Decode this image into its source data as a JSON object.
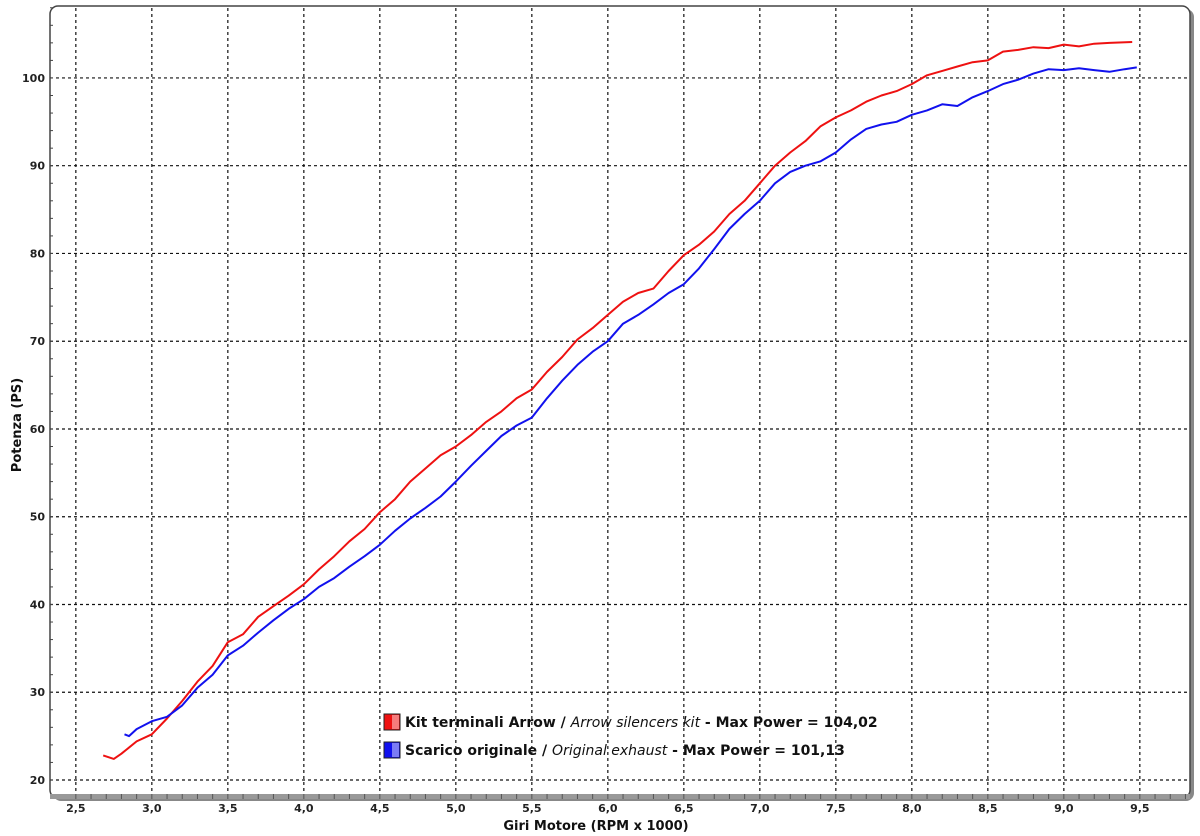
{
  "chart_data": {
    "type": "line",
    "title": "",
    "xlabel": "Giri Motore (RPM x 1000)",
    "ylabel": "Potenza (PS)",
    "xlim": [
      2.33,
      9.83
    ],
    "ylim": [
      18.06,
      108.2
    ],
    "xticks": [
      2.5,
      3.0,
      3.5,
      4.0,
      4.5,
      5.0,
      5.5,
      6.0,
      6.5,
      7.0,
      7.5,
      8.0,
      8.5,
      9.0,
      9.5
    ],
    "xtick_labels": [
      "2,5",
      "3,0",
      "3,5",
      "4,0",
      "4,5",
      "5,0",
      "5,5",
      "6,0",
      "6,5",
      "7,0",
      "7,5",
      "8,0",
      "8,5",
      "9,0",
      "9,5"
    ],
    "yticks": [
      20,
      30,
      40,
      50,
      60,
      70,
      80,
      90,
      100
    ],
    "ytick_labels": [
      "20",
      "30",
      "40",
      "50",
      "60",
      "70",
      "80",
      "90",
      "100"
    ],
    "grid": true,
    "legend_placement": "bottom-center",
    "series": [
      {
        "name_plain": "Kit terminali Arrow / ",
        "name_italic": "Arrow silencers kit",
        "name_suffix": " - Max Power = 104,02",
        "color": "#ee1111",
        "x": [
          2.68,
          2.75,
          2.8,
          2.9,
          3.0,
          3.1,
          3.2,
          3.3,
          3.4,
          3.5,
          3.6,
          3.7,
          3.8,
          3.9,
          4.0,
          4.1,
          4.2,
          4.3,
          4.4,
          4.5,
          4.6,
          4.7,
          4.8,
          4.9,
          5.0,
          5.1,
          5.2,
          5.3,
          5.4,
          5.5,
          5.6,
          5.7,
          5.8,
          5.9,
          6.0,
          6.1,
          6.2,
          6.3,
          6.4,
          6.5,
          6.6,
          6.7,
          6.8,
          6.9,
          7.0,
          7.1,
          7.2,
          7.3,
          7.4,
          7.5,
          7.6,
          7.7,
          7.8,
          7.9,
          8.0,
          8.1,
          8.2,
          8.3,
          8.4,
          8.5,
          8.6,
          8.7,
          8.8,
          8.9,
          9.0,
          9.1,
          9.2,
          9.3,
          9.45
        ],
        "y": [
          22.8,
          22.4,
          23,
          24.4,
          25.2,
          27,
          29,
          31.2,
          33,
          35.7,
          36.6,
          38.6,
          39.8,
          41,
          42.3,
          44,
          45.5,
          47.2,
          48.6,
          50.5,
          52,
          54,
          55.5,
          57,
          58,
          59.3,
          60.8,
          62,
          63.5,
          64.5,
          66.5,
          68.2,
          70.2,
          71.5,
          73,
          74.5,
          75.5,
          76,
          78,
          79.8,
          81,
          82.5,
          84.5,
          86,
          88,
          90,
          91.5,
          92.8,
          94.5,
          95.5,
          96.3,
          97.3,
          98,
          98.5,
          99.3,
          100.3,
          100.8,
          101.3,
          101.8,
          102,
          103,
          103.2,
          103.5,
          103.4,
          103.8,
          103.6,
          103.9,
          104,
          104.1
        ]
      },
      {
        "name_plain": "Scarico originale / ",
        "name_italic": "Original exhaust",
        "name_suffix": " - Max Power = 101,13",
        "color": "#1111ee",
        "x": [
          2.82,
          2.85,
          2.9,
          3.0,
          3.1,
          3.2,
          3.3,
          3.4,
          3.5,
          3.6,
          3.7,
          3.8,
          3.9,
          4.0,
          4.1,
          4.2,
          4.3,
          4.4,
          4.5,
          4.6,
          4.7,
          4.8,
          4.9,
          5.0,
          5.1,
          5.2,
          5.3,
          5.4,
          5.5,
          5.6,
          5.7,
          5.8,
          5.9,
          6.0,
          6.1,
          6.2,
          6.3,
          6.4,
          6.5,
          6.6,
          6.7,
          6.8,
          6.9,
          7.0,
          7.1,
          7.2,
          7.3,
          7.4,
          7.5,
          7.6,
          7.7,
          7.8,
          7.9,
          8.0,
          8.1,
          8.2,
          8.3,
          8.4,
          8.5,
          8.6,
          8.7,
          8.8,
          8.9,
          9.0,
          9.1,
          9.2,
          9.3,
          9.4,
          9.48
        ],
        "y": [
          25.2,
          25,
          25.8,
          26.7,
          27.2,
          28.5,
          30.5,
          32,
          34.2,
          35.3,
          36.8,
          38.2,
          39.5,
          40.6,
          42,
          43,
          44.3,
          45.5,
          46.8,
          48.4,
          49.8,
          51,
          52.3,
          54,
          55.8,
          57.5,
          59.2,
          60.4,
          61.3,
          63.5,
          65.5,
          67.3,
          68.8,
          70,
          72,
          73,
          74.2,
          75.5,
          76.5,
          78.3,
          80.5,
          82.8,
          84.5,
          86,
          88,
          89.3,
          90,
          90.5,
          91.5,
          93,
          94.2,
          94.7,
          95,
          95.8,
          96.3,
          97,
          96.8,
          97.8,
          98.5,
          99.3,
          99.8,
          100.5,
          101,
          100.9,
          101.1,
          100.9,
          100.7,
          101,
          101.2
        ]
      }
    ]
  }
}
